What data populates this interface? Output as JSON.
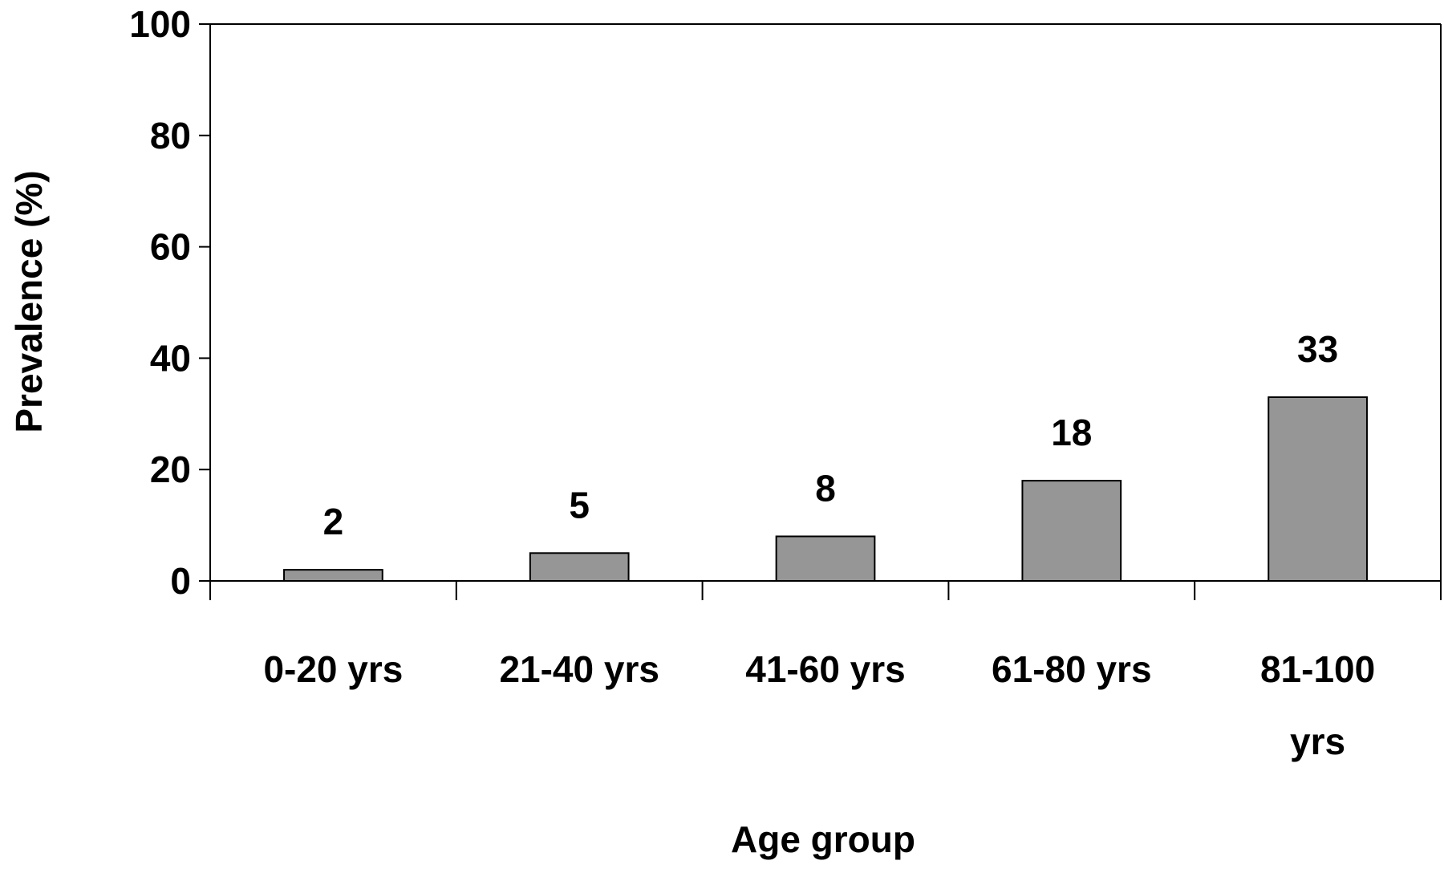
{
  "chart_data": {
    "type": "bar",
    "title": "",
    "xlabel": "Age group",
    "ylabel": "Prevalence (%)",
    "categories": [
      [
        "0-20 yrs"
      ],
      [
        "21-40 yrs"
      ],
      [
        "41-60 yrs"
      ],
      [
        "61-80 yrs"
      ],
      [
        "81-100",
        "yrs"
      ]
    ],
    "values": [
      2,
      5,
      8,
      18,
      33
    ],
    "data_labels": [
      "2",
      "5",
      "8",
      "18",
      "33"
    ],
    "ylim": [
      0,
      100
    ],
    "yticks": [
      0,
      20,
      40,
      60,
      80,
      100
    ],
    "grid": false,
    "legend": "none",
    "colors": {
      "bar_fill": "#969696",
      "bar_stroke": "#000000",
      "axis": "#000000",
      "background": "#ffffff"
    }
  }
}
